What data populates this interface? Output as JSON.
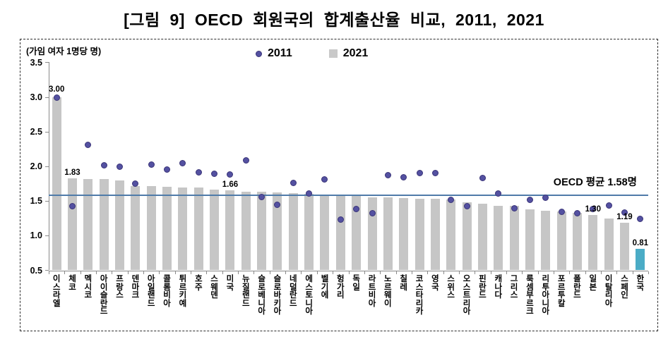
{
  "figure": {
    "title": "[그림 9] OECD 회원국의 합계출산율 비교, 2011, 2021"
  },
  "chart_data": {
    "type": "bar",
    "title": "[그림 9] OECD 회원국의 합계출산율 비교, 2011, 2021",
    "unit_label": "(가임 여자 1명당 명)",
    "ylim": [
      0.5,
      3.5
    ],
    "yticks": [
      "3.5",
      "3.0",
      "2.5",
      "2.0",
      "1.5",
      "1.0",
      "0.5"
    ],
    "ytick_values": [
      3.5,
      3.0,
      2.5,
      2.0,
      1.5,
      1.0,
      0.5
    ],
    "grid": "off",
    "legend_position": "top-center",
    "legend": [
      {
        "name": "2011",
        "marker": "dot",
        "color": "#5451a1"
      },
      {
        "name": "2021",
        "marker": "square",
        "color": "#c9c9c9"
      }
    ],
    "categories": [
      "이스라엘",
      "체코",
      "멕시코",
      "아이슬란드",
      "프랑스",
      "덴마크",
      "아일랜드",
      "콜롬비아",
      "튀르키예",
      "호주",
      "스웨덴",
      "미국",
      "뉴질랜드",
      "슬로베니아",
      "슬로바키아",
      "네덜란드",
      "에스토니아",
      "벨기에",
      "헝가리",
      "독일",
      "라트비아",
      "노르웨이",
      "칠레",
      "코스타리카",
      "영국",
      "스위스",
      "오스트리아",
      "핀란드",
      "캐나다",
      "그리스",
      "룩셈부르크",
      "리투아니아",
      "포르투칼",
      "폴란드",
      "일본",
      "이탈리아",
      "스페인",
      "한국"
    ],
    "series": [
      {
        "name": "2011",
        "type": "scatter",
        "color": "#5451a1",
        "values": [
          3.0,
          1.43,
          2.31,
          2.02,
          2.0,
          1.75,
          2.03,
          1.96,
          2.05,
          1.92,
          1.9,
          1.89,
          2.09,
          1.56,
          1.45,
          1.76,
          1.61,
          1.81,
          1.23,
          1.39,
          1.33,
          1.88,
          1.84,
          1.91,
          1.91,
          1.52,
          1.43,
          1.83,
          1.61,
          1.4,
          1.52,
          1.55,
          1.35,
          1.33,
          1.39,
          1.44,
          1.34,
          1.24
        ]
      },
      {
        "name": "2021",
        "type": "bar",
        "color": "#c6c6c6",
        "values": [
          3.0,
          1.83,
          1.82,
          1.82,
          1.8,
          1.72,
          1.72,
          1.71,
          1.7,
          1.7,
          1.67,
          1.66,
          1.64,
          1.64,
          1.63,
          1.62,
          1.61,
          1.6,
          1.59,
          1.58,
          1.55,
          1.55,
          1.54,
          1.53,
          1.53,
          1.52,
          1.48,
          1.46,
          1.43,
          1.43,
          1.38,
          1.36,
          1.35,
          1.33,
          1.3,
          1.25,
          1.19,
          0.81
        ]
      }
    ],
    "highlight": {
      "category": "한국",
      "bar_color": "#4bacc6"
    },
    "reference_line": {
      "value": 1.58,
      "label": "OECD 평균 1.58명",
      "color": "#4f7ba9"
    },
    "point_labels": [
      {
        "category": "이스라엘",
        "series": "2011",
        "text": "3.00"
      },
      {
        "category": "체코",
        "series": "2021",
        "text": "1.83"
      },
      {
        "category": "미국",
        "series": "2021",
        "text": "1.66"
      },
      {
        "category": "일본",
        "series": "2021",
        "text": "1.30"
      },
      {
        "category": "스페인",
        "series": "2021",
        "text": "1.19"
      },
      {
        "category": "한국",
        "series": "2021",
        "text": "0.81"
      }
    ],
    "colors": {
      "bar": "#c6c6c6",
      "bar_highlight": "#4bacc6",
      "dot_fill": "#5451a1",
      "dot_border": "#3a3478",
      "axis": "#8a8a8a",
      "reference_line": "#4f7ba9",
      "text": "#000000"
    }
  }
}
